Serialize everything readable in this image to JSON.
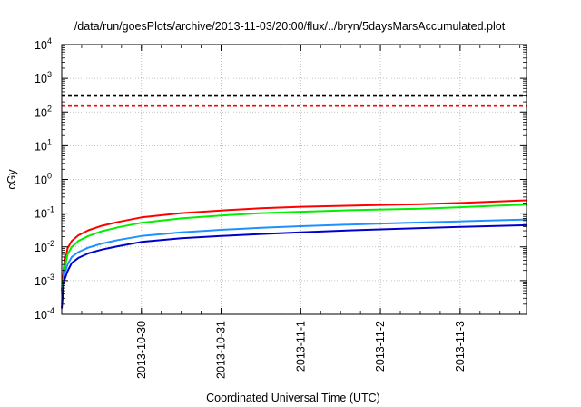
{
  "chart_data": {
    "type": "line",
    "title": "/data/run/goesPlots/archive/2013-11-03/20:00/flux/../bryn/5daysMarsAccumulated.plot",
    "xlabel": "Coordinated Universal Time (UTC)",
    "ylabel": "cGy",
    "y_scale": "log",
    "ylim": [
      0.0001,
      10000
    ],
    "xlim": [
      "2013-10-29T00:00",
      "2013-11-03T20:00"
    ],
    "grid": true,
    "legend": "none",
    "x_ticks": [
      "2013-10-30",
      "2013-10-31",
      "2013-11-1",
      "2013-11-2",
      "2013-11-3"
    ],
    "y_ticks": [
      {
        "value": 0.0001,
        "base": "10",
        "exp": "-4"
      },
      {
        "value": 0.001,
        "base": "10",
        "exp": "-3"
      },
      {
        "value": 0.01,
        "base": "10",
        "exp": "-2"
      },
      {
        "value": 0.1,
        "base": "10",
        "exp": "-1"
      },
      {
        "value": 1,
        "base": "10",
        "exp": "0"
      },
      {
        "value": 10,
        "base": "10",
        "exp": "1"
      },
      {
        "value": 100,
        "base": "10",
        "exp": "2"
      },
      {
        "value": 1000,
        "base": "10",
        "exp": "3"
      },
      {
        "value": 10000,
        "base": "10",
        "exp": "4"
      }
    ],
    "thresholds": [
      {
        "value": 300,
        "color": "#000000"
      },
      {
        "value": 150,
        "color": "#ff0000"
      }
    ],
    "series": [
      {
        "color": "#ff0000",
        "x": [
          "2013-10-29T00:00",
          "2013-10-29T00:45",
          "2013-10-29T01:45",
          "2013-10-29T03:00",
          "2013-10-29T05:00",
          "2013-10-29T08:00",
          "2013-10-29T12:00",
          "2013-10-29T17:00",
          "2013-10-30T00:00",
          "2013-10-30T12:00",
          "2013-10-31T00:00",
          "2013-10-31T12:00",
          "2013-11-01T00:00",
          "2013-11-01T12:00",
          "2013-11-02T00:00",
          "2013-11-02T12:00",
          "2013-11-03T00:00",
          "2013-11-03T20:00"
        ],
        "y": [
          0.0005,
          0.003,
          0.009,
          0.015,
          0.022,
          0.031,
          0.042,
          0.055,
          0.075,
          0.1,
          0.12,
          0.14,
          0.155,
          0.165,
          0.175,
          0.185,
          0.2,
          0.24
        ]
      },
      {
        "color": "#00ee00",
        "x": [
          "2013-10-29T00:00",
          "2013-10-29T00:45",
          "2013-10-29T01:45",
          "2013-10-29T03:00",
          "2013-10-29T05:00",
          "2013-10-29T08:00",
          "2013-10-29T12:00",
          "2013-10-29T17:00",
          "2013-10-30T00:00",
          "2013-10-30T12:00",
          "2013-10-31T00:00",
          "2013-10-31T12:00",
          "2013-11-01T00:00",
          "2013-11-01T12:00",
          "2013-11-02T00:00",
          "2013-11-02T12:00",
          "2013-11-03T00:00",
          "2013-11-03T20:00"
        ],
        "y": [
          0.0004,
          0.002,
          0.006,
          0.01,
          0.015,
          0.021,
          0.029,
          0.038,
          0.052,
          0.07,
          0.085,
          0.1,
          0.11,
          0.12,
          0.128,
          0.135,
          0.15,
          0.18
        ]
      },
      {
        "color": "#1e90ff",
        "x": [
          "2013-10-29T00:00",
          "2013-10-29T00:45",
          "2013-10-29T01:45",
          "2013-10-29T03:00",
          "2013-10-29T05:00",
          "2013-10-29T08:00",
          "2013-10-29T12:00",
          "2013-10-29T17:00",
          "2013-10-30T00:00",
          "2013-10-30T12:00",
          "2013-10-31T00:00",
          "2013-10-31T12:00",
          "2013-11-01T00:00",
          "2013-11-01T12:00",
          "2013-11-02T00:00",
          "2013-11-02T12:00",
          "2013-11-03T00:00",
          "2013-11-03T20:00"
        ],
        "y": [
          0.0002,
          0.0015,
          0.003,
          0.005,
          0.007,
          0.0095,
          0.0125,
          0.016,
          0.021,
          0.027,
          0.032,
          0.037,
          0.041,
          0.045,
          0.049,
          0.053,
          0.057,
          0.065
        ]
      },
      {
        "color": "#0000cd",
        "x": [
          "2013-10-29T00:00",
          "2013-10-29T00:45",
          "2013-10-29T01:45",
          "2013-10-29T03:00",
          "2013-10-29T05:00",
          "2013-10-29T08:00",
          "2013-10-29T12:00",
          "2013-10-29T17:00",
          "2013-10-30T00:00",
          "2013-10-30T12:00",
          "2013-10-31T00:00",
          "2013-10-31T12:00",
          "2013-11-01T00:00",
          "2013-11-01T12:00",
          "2013-11-02T00:00",
          "2013-11-02T12:00",
          "2013-11-03T00:00",
          "2013-11-03T20:00"
        ],
        "y": [
          0.00015,
          0.001,
          0.0019,
          0.0033,
          0.0047,
          0.0064,
          0.0083,
          0.0105,
          0.014,
          0.018,
          0.021,
          0.024,
          0.027,
          0.03,
          0.033,
          0.036,
          0.039,
          0.044
        ]
      }
    ]
  }
}
